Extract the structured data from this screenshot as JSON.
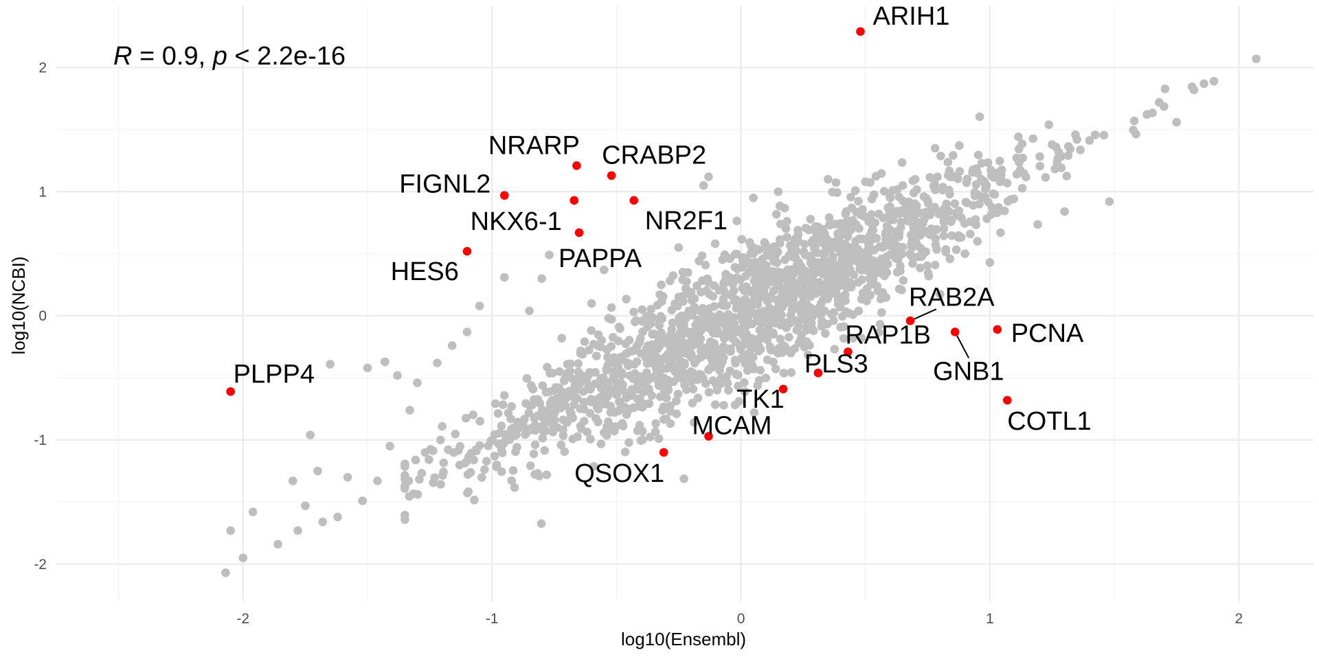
{
  "chart_data": {
    "type": "scatter",
    "xlabel": "log10(Ensembl)",
    "ylabel": "log10(NCBI)",
    "xlim": [
      -2.75,
      2.3
    ],
    "ylim": [
      -2.3,
      2.5
    ],
    "x_ticks": [
      -2,
      -1,
      0,
      1,
      2
    ],
    "y_ticks": [
      -2,
      -1,
      0,
      1,
      2
    ],
    "x_tick_labels": [
      "-2",
      "-1",
      "0",
      "1",
      "2"
    ],
    "y_tick_labels": [
      "-2",
      "-1",
      "0",
      "1",
      "2"
    ],
    "grid": true,
    "annotation": {
      "r_symbol": "R",
      "r_text": " = 0.9, ",
      "p_symbol": "p",
      "p_text": " < 2.2e-16"
    },
    "colors": {
      "background_points": "#bebebe",
      "highlight_points": "#ff0000"
    },
    "background_trend": {
      "n_points": 1700,
      "slope": 1.0,
      "intercept": 0.0,
      "x_range": [
        -1.35,
        1.9
      ]
    },
    "background_outliers": [
      {
        "x": -2.07,
        "y": -2.07
      },
      {
        "x": -2.05,
        "y": -1.73
      },
      {
        "x": -2.0,
        "y": -1.95
      },
      {
        "x": -1.96,
        "y": -1.58
      },
      {
        "x": -1.86,
        "y": -1.84
      },
      {
        "x": -1.8,
        "y": -1.33
      },
      {
        "x": -1.78,
        "y": -1.73
      },
      {
        "x": -1.75,
        "y": -1.53
      },
      {
        "x": -1.73,
        "y": -0.96
      },
      {
        "x": -1.7,
        "y": -1.25
      },
      {
        "x": -1.68,
        "y": -1.66
      },
      {
        "x": -1.65,
        "y": -0.39
      },
      {
        "x": -1.62,
        "y": -1.62
      },
      {
        "x": -1.58,
        "y": -1.3
      },
      {
        "x": -1.52,
        "y": -1.49
      },
      {
        "x": -1.5,
        "y": -0.42
      },
      {
        "x": -1.46,
        "y": -1.33
      },
      {
        "x": -1.43,
        "y": -0.37
      },
      {
        "x": -1.41,
        "y": -1.05
      },
      {
        "x": -1.38,
        "y": -0.48
      },
      {
        "x": -1.33,
        "y": -0.76
      },
      {
        "x": -1.3,
        "y": -0.54
      },
      {
        "x": -1.22,
        "y": -0.38
      },
      {
        "x": -1.2,
        "y": -0.89
      },
      {
        "x": -1.16,
        "y": -0.24
      },
      {
        "x": -1.1,
        "y": -0.13
      },
      {
        "x": -1.05,
        "y": 0.08
      },
      {
        "x": -0.95,
        "y": 0.31
      },
      {
        "x": -0.85,
        "y": 0.04
      },
      {
        "x": -0.8,
        "y": 0.3
      },
      {
        "x": -0.78,
        "y": -1.28
      },
      {
        "x": -0.77,
        "y": 0.49
      },
      {
        "x": -0.72,
        "y": -0.18
      },
      {
        "x": -0.6,
        "y": 0.1
      },
      {
        "x": -0.55,
        "y": 0.37
      },
      {
        "x": -0.45,
        "y": -1.02
      },
      {
        "x": -0.38,
        "y": -0.03
      },
      {
        "x": -0.32,
        "y": 0.25
      },
      {
        "x": -0.3,
        "y": -0.83
      },
      {
        "x": -0.25,
        "y": 0.55
      },
      {
        "x": -0.2,
        "y": -0.45
      },
      {
        "x": -0.15,
        "y": 1.05
      },
      {
        "x": -0.13,
        "y": 1.12
      },
      {
        "x": -0.1,
        "y": -0.55
      },
      {
        "x": -0.05,
        "y": -0.6
      },
      {
        "x": 0.05,
        "y": 0.95
      },
      {
        "x": 0.1,
        "y": -0.5
      },
      {
        "x": 0.15,
        "y": 1.0
      },
      {
        "x": 0.2,
        "y": -0.3
      },
      {
        "x": 0.3,
        "y": 0.72
      },
      {
        "x": 0.35,
        "y": 1.1
      },
      {
        "x": 0.45,
        "y": -0.18
      },
      {
        "x": 0.5,
        "y": 1.08
      },
      {
        "x": 0.55,
        "y": 0.2
      },
      {
        "x": 0.6,
        "y": 0.95
      },
      {
        "x": 0.65,
        "y": 1.05
      },
      {
        "x": 0.7,
        "y": 1.1
      },
      {
        "x": 0.78,
        "y": 1.35
      },
      {
        "x": 0.85,
        "y": 1.12
      },
      {
        "x": 0.9,
        "y": 0.5
      },
      {
        "x": 0.95,
        "y": 1.15
      },
      {
        "x": 0.95,
        "y": 0.6
      },
      {
        "x": 1.0,
        "y": 0.43
      },
      {
        "x": 1.25,
        "y": 1.38
      },
      {
        "x": 1.3,
        "y": 0.84
      },
      {
        "x": 1.35,
        "y": 1.42
      },
      {
        "x": 1.48,
        "y": 0.92
      },
      {
        "x": 1.58,
        "y": 1.57
      },
      {
        "x": 1.68,
        "y": 1.72
      },
      {
        "x": 1.75,
        "y": 1.56
      },
      {
        "x": 1.82,
        "y": 1.82
      },
      {
        "x": 1.86,
        "y": 1.87
      },
      {
        "x": 1.9,
        "y": 1.89
      },
      {
        "x": 2.07,
        "y": 2.07
      }
    ],
    "highlighted": [
      {
        "label": "ARIH1",
        "x": 0.48,
        "y": 2.29
      },
      {
        "label": "NRARP",
        "x": -0.66,
        "y": 1.21
      },
      {
        "label": "CRABP2",
        "x": -0.52,
        "y": 1.13
      },
      {
        "label": "FIGNL2",
        "x": -0.95,
        "y": 0.97
      },
      {
        "label": "NKX6-1",
        "x": -0.67,
        "y": 0.93
      },
      {
        "label": "NR2F1",
        "x": -0.43,
        "y": 0.93
      },
      {
        "label": "PAPPA",
        "x": -0.65,
        "y": 0.67
      },
      {
        "label": "HES6",
        "x": -1.1,
        "y": 0.52
      },
      {
        "label": "PLPP4",
        "x": -2.05,
        "y": -0.61
      },
      {
        "label": "RAB2A",
        "x": 0.68,
        "y": -0.04
      },
      {
        "label": "RAP1B",
        "x": 0.43,
        "y": -0.29
      },
      {
        "label": "GNB1",
        "x": 0.86,
        "y": -0.13
      },
      {
        "label": "PCNA",
        "x": 1.03,
        "y": -0.11
      },
      {
        "label": "PLS3",
        "x": 0.31,
        "y": -0.46
      },
      {
        "label": "TK1",
        "x": 0.17,
        "y": -0.59
      },
      {
        "label": "MCAM",
        "x": -0.13,
        "y": -0.97
      },
      {
        "label": "QSOX1",
        "x": -0.31,
        "y": -1.1
      },
      {
        "label": "COTL1",
        "x": 1.07,
        "y": -0.68
      }
    ]
  }
}
